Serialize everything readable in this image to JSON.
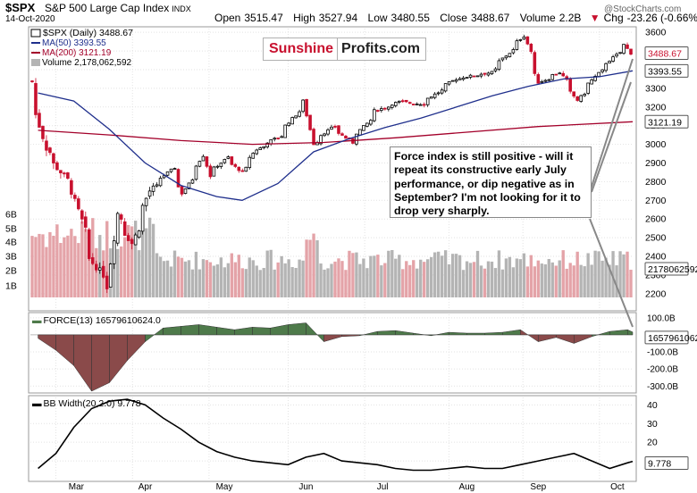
{
  "header": {
    "symbol": "$SPX",
    "name": "S&P 500 Large Cap Index",
    "exchange": "INDX",
    "date": "14-Oct-2020",
    "open_label": "Open",
    "open": "3515.47",
    "high_label": "High",
    "high": "3527.94",
    "low_label": "Low",
    "low": "3480.55",
    "close_label": "Close",
    "close": "3488.67",
    "volume_label": "Volume",
    "volume": "2.2B",
    "chg_label": "Chg",
    "chg": "-23.26 (-0.66%)",
    "chg_arrow": "▼",
    "watermark": "@StockCharts.com"
  },
  "logo": {
    "part1": "Sunshine",
    "part2": "Profits.com"
  },
  "legend": {
    "price": "$SPX (Daily) 3488.67",
    "ma50": "MA(50) 3393.55",
    "ma200": "MA(200) 3121.19",
    "volume": "Volume 2,178,062,592"
  },
  "annotation": "Force index is still positive - will it repeat its constructive early July performance, or dip negative as in  September? I'm not looking for it to drop very sharply.",
  "colors": {
    "up": "#000000",
    "down": "#c8102e",
    "ma50": "#1f2f8c",
    "ma200": "#a3002a",
    "vol_up": "#b4b4b4",
    "vol_down": "#e4a3a8",
    "force_pos": "#4e7a4a",
    "force_neg": "#8a4a4a",
    "price_badge": "#c8102e",
    "accent_text": "#c8102e"
  },
  "chart_data": [
    {
      "type": "candlestick",
      "title": "$SPX (Daily) 3488.67",
      "x_labels": [
        "Mar",
        "Apr",
        "May",
        "Jun",
        "Jul",
        "Aug",
        "Sep",
        "Oct"
      ],
      "y_ticks": [
        "3600",
        "3500",
        "3400",
        "3300",
        "3200",
        "3100",
        "3000",
        "2900",
        "2800",
        "2700",
        "2600",
        "2500",
        "2400",
        "2300",
        "2200"
      ],
      "ylim": [
        2180,
        3620
      ],
      "value_badges": [
        "3488.67",
        "3393.55",
        "3121.19"
      ],
      "series": [
        {
          "name": "MA(50) 3393.55",
          "description_points": [
            [
              "2020-02-24",
              3275
            ],
            [
              "2020-03-09",
              3232
            ],
            [
              "2020-03-23",
              3080
            ],
            [
              "2020-04-06",
              2900
            ],
            [
              "2020-04-20",
              2780
            ],
            [
              "2020-05-04",
              2720
            ],
            [
              "2020-05-14",
              2700
            ],
            [
              "2020-05-28",
              2790
            ],
            [
              "2020-06-11",
              2960
            ],
            [
              "2020-06-25",
              3030
            ],
            [
              "2020-07-09",
              3090
            ],
            [
              "2020-07-23",
              3140
            ],
            [
              "2020-08-06",
              3200
            ],
            [
              "2020-08-20",
              3260
            ],
            [
              "2020-09-03",
              3310
            ],
            [
              "2020-09-17",
              3350
            ],
            [
              "2020-10-01",
              3362
            ],
            [
              "2020-10-14",
              3393.55
            ]
          ]
        },
        {
          "name": "MA(200) 3121.19",
          "description_points": [
            [
              "2020-02-24",
              3075
            ],
            [
              "2020-03-23",
              3050
            ],
            [
              "2020-04-20",
              3020
            ],
            [
              "2020-05-18",
              3000
            ],
            [
              "2020-06-15",
              3010
            ],
            [
              "2020-07-13",
              3035
            ],
            [
              "2020-08-10",
              3065
            ],
            [
              "2020-09-07",
              3095
            ],
            [
              "2020-10-14",
              3121.19
            ]
          ]
        }
      ],
      "close_path": [
        [
          "2020-02-21",
          3338
        ],
        [
          "2020-02-27",
          2979
        ],
        [
          "2020-03-09",
          2746
        ],
        [
          "2020-03-16",
          2386
        ],
        [
          "2020-03-23",
          2237
        ],
        [
          "2020-03-26",
          2630
        ],
        [
          "2020-04-01",
          2470
        ],
        [
          "2020-04-08",
          2750
        ],
        [
          "2020-04-17",
          2875
        ],
        [
          "2020-04-21",
          2737
        ],
        [
          "2020-04-29",
          2940
        ],
        [
          "2020-05-01",
          2830
        ],
        [
          "2020-05-08",
          2930
        ],
        [
          "2020-05-14",
          2852
        ],
        [
          "2020-05-20",
          2972
        ],
        [
          "2020-05-29",
          3044
        ],
        [
          "2020-06-08",
          3232
        ],
        [
          "2020-06-11",
          3002
        ],
        [
          "2020-06-19",
          3098
        ],
        [
          "2020-06-26",
          3009
        ],
        [
          "2020-07-06",
          3180
        ],
        [
          "2020-07-15",
          3227
        ],
        [
          "2020-07-24",
          3216
        ],
        [
          "2020-08-06",
          3350
        ],
        [
          "2020-08-20",
          3385
        ],
        [
          "2020-09-02",
          3580
        ],
        [
          "2020-09-08",
          3332
        ],
        [
          "2020-09-16",
          3385
        ],
        [
          "2020-09-23",
          3237
        ],
        [
          "2020-10-01",
          3380
        ],
        [
          "2020-10-12",
          3534
        ],
        [
          "2020-10-14",
          3488.67
        ]
      ],
      "volume": {
        "name": "Volume 2,178,062,592",
        "y_ticks": [
          "6B",
          "5B",
          "4B",
          "3B",
          "2B",
          "1B"
        ],
        "last": "2178062592"
      }
    },
    {
      "type": "area",
      "title": "FORCE(13) 16579610624.0",
      "y_ticks": [
        "100.0B",
        "-100.0B",
        "-200.0B",
        "-300.0B"
      ],
      "ylim": [
        -330,
        120
      ],
      "unit": "B",
      "badge": "16579610624.0",
      "points": [
        [
          "2020-02-24",
          -20
        ],
        [
          "2020-03-02",
          -90
        ],
        [
          "2020-03-09",
          -180
        ],
        [
          "2020-03-16",
          -330
        ],
        [
          "2020-03-23",
          -280
        ],
        [
          "2020-03-30",
          -150
        ],
        [
          "2020-04-06",
          -40
        ],
        [
          "2020-04-13",
          40
        ],
        [
          "2020-04-20",
          50
        ],
        [
          "2020-04-27",
          60
        ],
        [
          "2020-05-04",
          45
        ],
        [
          "2020-05-11",
          30
        ],
        [
          "2020-05-18",
          45
        ],
        [
          "2020-05-25",
          40
        ],
        [
          "2020-06-01",
          60
        ],
        [
          "2020-06-08",
          70
        ],
        [
          "2020-06-15",
          -40
        ],
        [
          "2020-06-22",
          -10
        ],
        [
          "2020-06-29",
          -5
        ],
        [
          "2020-07-06",
          20
        ],
        [
          "2020-07-13",
          25
        ],
        [
          "2020-07-20",
          10
        ],
        [
          "2020-07-27",
          -5
        ],
        [
          "2020-08-03",
          15
        ],
        [
          "2020-08-10",
          10
        ],
        [
          "2020-08-17",
          10
        ],
        [
          "2020-08-24",
          15
        ],
        [
          "2020-08-31",
          30
        ],
        [
          "2020-09-07",
          -40
        ],
        [
          "2020-09-14",
          -15
        ],
        [
          "2020-09-21",
          -50
        ],
        [
          "2020-09-28",
          -10
        ],
        [
          "2020-10-05",
          20
        ],
        [
          "2020-10-12",
          30
        ],
        [
          "2020-10-14",
          16.58
        ]
      ]
    },
    {
      "type": "line",
      "title": "BB Width(20,2.0) 9.778",
      "y_ticks": [
        "40",
        "30",
        "20",
        "10"
      ],
      "ylim": [
        0,
        44
      ],
      "badge": "9.778",
      "points": [
        [
          "2020-02-24",
          6
        ],
        [
          "2020-03-02",
          14
        ],
        [
          "2020-03-09",
          28
        ],
        [
          "2020-03-16",
          38
        ],
        [
          "2020-03-23",
          42
        ],
        [
          "2020-03-30",
          43
        ],
        [
          "2020-04-06",
          40
        ],
        [
          "2020-04-13",
          33
        ],
        [
          "2020-04-20",
          27
        ],
        [
          "2020-04-27",
          20
        ],
        [
          "2020-05-04",
          15
        ],
        [
          "2020-05-11",
          12
        ],
        [
          "2020-05-18",
          10
        ],
        [
          "2020-05-25",
          9
        ],
        [
          "2020-06-01",
          8
        ],
        [
          "2020-06-08",
          12
        ],
        [
          "2020-06-15",
          14
        ],
        [
          "2020-06-22",
          10
        ],
        [
          "2020-06-29",
          9
        ],
        [
          "2020-07-06",
          8
        ],
        [
          "2020-07-13",
          6
        ],
        [
          "2020-07-20",
          5
        ],
        [
          "2020-07-27",
          5
        ],
        [
          "2020-08-03",
          6
        ],
        [
          "2020-08-10",
          7
        ],
        [
          "2020-08-17",
          6
        ],
        [
          "2020-08-24",
          6
        ],
        [
          "2020-08-31",
          8
        ],
        [
          "2020-09-07",
          10
        ],
        [
          "2020-09-14",
          12
        ],
        [
          "2020-09-21",
          14
        ],
        [
          "2020-09-28",
          10
        ],
        [
          "2020-10-05",
          6
        ],
        [
          "2020-10-12",
          9
        ],
        [
          "2020-10-14",
          9.778
        ]
      ]
    }
  ]
}
